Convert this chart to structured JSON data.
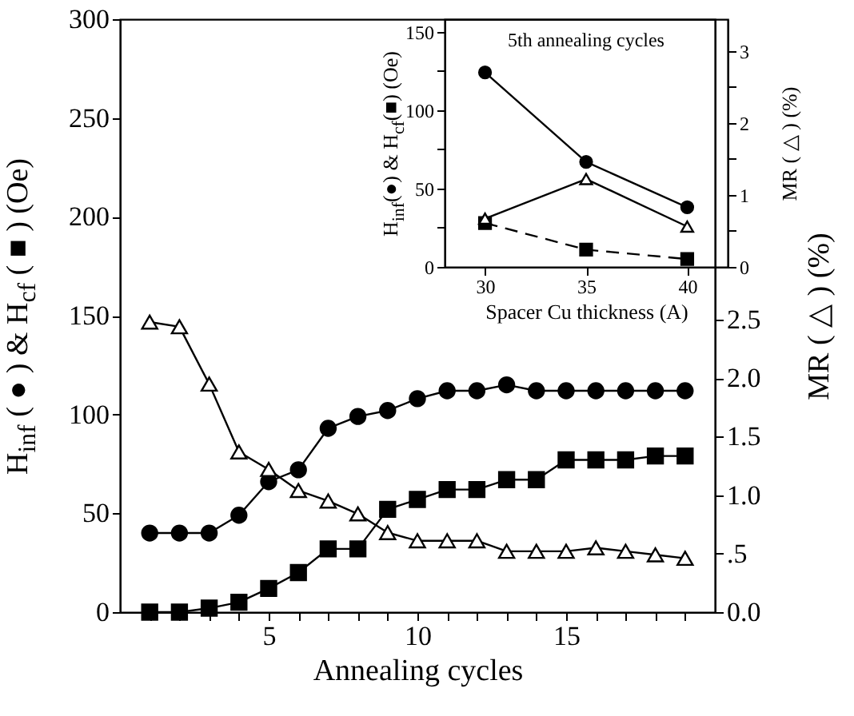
{
  "chart_data": [
    {
      "type": "line",
      "xlabel": "Annealing cycles",
      "ylabel": "H$_{inf}$ ( ● ) & H$_{cf}$ ( ■ ) (Oe)",
      "y2label": "MR ( △ ) (%)",
      "x": [
        1,
        2,
        3,
        4,
        5,
        6,
        7,
        8,
        9,
        10,
        11,
        12,
        13,
        14,
        15,
        16,
        17,
        18,
        19
      ],
      "series": [
        {
          "color": "#000000",
          "marker": "circle",
          "values": [
            40,
            40,
            40,
            49,
            66,
            72,
            93,
            99,
            102,
            108,
            112,
            112,
            115,
            112,
            112,
            112,
            112,
            112,
            112
          ]
        },
        {
          "color": "#000000",
          "marker": "square",
          "values": [
            0,
            0,
            2,
            5,
            12,
            20,
            32,
            32,
            52,
            57,
            62,
            62,
            67,
            67,
            77,
            77,
            77,
            79,
            79
          ]
        },
        {
          "color": "#000000",
          "marker": "triangle",
          "axis": "y2",
          "values": [
            2.48,
            2.44,
            1.95,
            1.37,
            1.22,
            1.04,
            0.95,
            0.84,
            0.68,
            0.61,
            0.61,
            0.61,
            0.52,
            0.52,
            0.52,
            0.55,
            0.52,
            0.49,
            0.46
          ]
        }
      ],
      "xlim": [
        0,
        20
      ],
      "xticks": [
        {
          "value": 1,
          "label": null
        },
        {
          "value": 2,
          "label": null
        },
        {
          "value": 3,
          "label": null
        },
        {
          "value": 4,
          "label": null
        },
        5,
        {
          "value": 6,
          "label": null
        },
        {
          "value": 7,
          "label": null
        },
        {
          "value": 8,
          "label": null
        },
        {
          "value": 9,
          "label": null
        },
        10,
        {
          "value": 11,
          "label": null
        },
        {
          "value": 12,
          "label": null
        },
        {
          "value": 13,
          "label": null
        },
        {
          "value": 14,
          "label": null
        },
        15,
        {
          "value": 16,
          "label": null
        },
        {
          "value": 17,
          "label": null
        },
        {
          "value": 18,
          "label": null
        },
        {
          "value": 19,
          "label": null
        }
      ],
      "ylim": [
        0,
        300
      ],
      "yticks": [
        0,
        50,
        100,
        150,
        200,
        250,
        300
      ],
      "y2lim": [
        0,
        5.07
      ],
      "y2ticks": [
        {
          "value": 0,
          "label": "0.0"
        },
        {
          "value": 0.5,
          "label": ".5"
        },
        {
          "value": 1,
          "label": "1.0"
        },
        {
          "value": 1.5,
          "label": "1.5"
        },
        {
          "value": 2,
          "label": "2.0"
        },
        {
          "value": 2.5,
          "label": "2.5"
        }
      ],
      "grid": false
    },
    {
      "type": "line",
      "xlabel": "Spacer Cu thickness (A)",
      "ylabel": "H$_{inf}$(●) & H$_{cf}$(■) (Oe)",
      "y2label": "MR ( △ ) (%)",
      "annotations": [
        "5th annealing cycles"
      ],
      "x": [
        30,
        35,
        40
      ],
      "series": [
        {
          "color": "#000000",
          "marker": "circle",
          "values": [
            124,
            67,
            38
          ]
        },
        {
          "color": "#000000",
          "marker": "square",
          "line_style": "dashed",
          "values": [
            28,
            11,
            5
          ]
        },
        {
          "color": "#000000",
          "marker": "triangle",
          "axis": "y2",
          "values": [
            0.67,
            1.22,
            0.56
          ]
        }
      ],
      "xlim": [
        28,
        42
      ],
      "xticks": [
        30,
        35,
        40
      ],
      "ylim": [
        0,
        158
      ],
      "yticks": [
        0,
        {
          "value": 25,
          "label": null
        },
        50,
        {
          "value": 75,
          "label": null
        },
        100,
        {
          "value": 125,
          "label": null
        },
        150
      ],
      "y2lim": [
        0,
        3.44
      ],
      "y2ticks": [
        0,
        {
          "value": 0.5,
          "label": null
        },
        1,
        {
          "value": 1.5,
          "label": null
        },
        2,
        {
          "value": 2.5,
          "label": null
        },
        3
      ],
      "grid": false
    }
  ]
}
